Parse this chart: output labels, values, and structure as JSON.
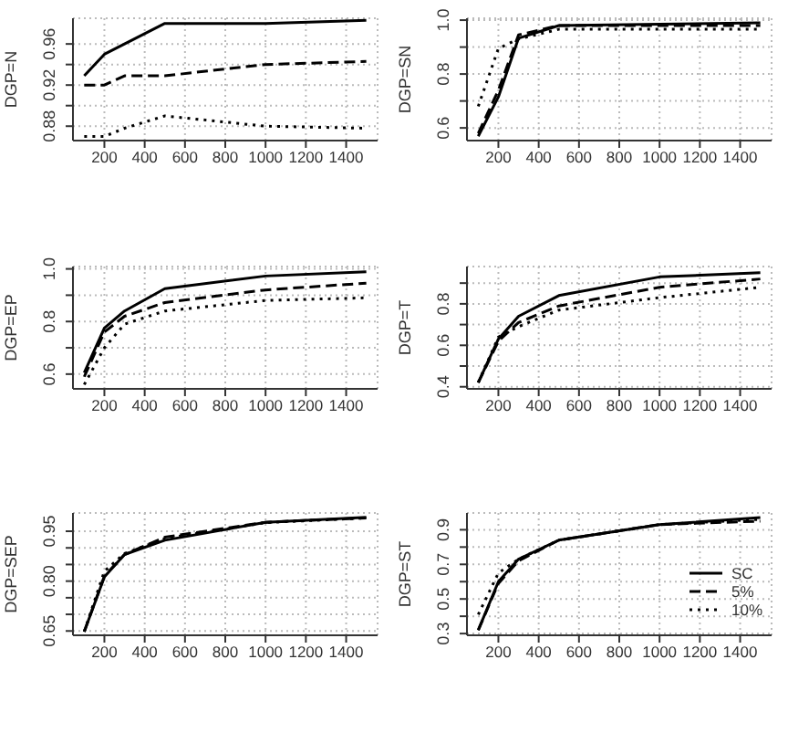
{
  "chart_data": [
    {
      "type": "line",
      "ylabel": "DGP=N",
      "x": [
        100,
        200,
        300,
        500,
        1000,
        1500
      ],
      "xlim": [
        44,
        1556
      ],
      "xticks": [
        200,
        400,
        600,
        800,
        1000,
        1200,
        1400
      ],
      "ylim": [
        0.866,
        0.985
      ],
      "yticks": [
        0.88,
        {
          "value": 0.9,
          "label": null
        },
        0.92,
        {
          "value": 0.94,
          "label": null
        },
        0.96
      ],
      "grid": true,
      "series": [
        {
          "color": "#000000",
          "line_style": "solid",
          "values": [
            0.929,
            0.95,
            0.96,
            0.98,
            0.98,
            0.983
          ]
        },
        {
          "color": "#000000",
          "line_style": "dashed",
          "values": [
            0.92,
            0.92,
            0.929,
            0.929,
            0.94,
            0.943
          ]
        },
        {
          "color": "#000000",
          "line_style": "dotted",
          "values": [
            0.87,
            0.87,
            0.878,
            0.89,
            0.88,
            0.878
          ]
        }
      ]
    },
    {
      "type": "line",
      "ylabel": "DGP=SN",
      "x": [
        100,
        200,
        300,
        500,
        1000,
        1500
      ],
      "xlim": [
        44,
        1556
      ],
      "xticks": [
        200,
        400,
        600,
        800,
        1000,
        1200,
        1400
      ],
      "ylim": [
        0.553,
        1.007
      ],
      "yticks": [
        0.6,
        {
          "value": 0.7,
          "label": null
        },
        0.8,
        {
          "value": 0.9,
          "label": null
        },
        {
          "value": 1,
          "label": "1.0"
        }
      ],
      "grid": true,
      "series": [
        {
          "color": "#000000",
          "line_style": "solid",
          "values": [
            0.569,
            0.715,
            0.933,
            0.98,
            0.985,
            0.99
          ]
        },
        {
          "color": "#000000",
          "line_style": "dashed",
          "values": [
            0.58,
            0.74,
            0.945,
            0.98,
            0.98,
            0.98
          ]
        },
        {
          "color": "#000000",
          "line_style": "dotted",
          "values": [
            0.68,
            0.895,
            0.93,
            0.966,
            0.966,
            0.966
          ]
        }
      ]
    },
    {
      "type": "line",
      "ylabel": "DGP=EP",
      "x": [
        100,
        200,
        300,
        500,
        1000,
        1500
      ],
      "xlim": [
        44,
        1556
      ],
      "xticks": [
        200,
        400,
        600,
        800,
        1000,
        1200,
        1400
      ],
      "ylim": [
        0.544,
        1.009
      ],
      "yticks": [
        0.6,
        {
          "value": 0.7,
          "label": null
        },
        0.8,
        {
          "value": 0.9,
          "label": null
        },
        {
          "value": 1,
          "label": "1.0"
        }
      ],
      "grid": true,
      "series": [
        {
          "color": "#000000",
          "line_style": "solid",
          "values": [
            0.605,
            0.775,
            0.84,
            0.925,
            0.973,
            0.989
          ]
        },
        {
          "color": "#000000",
          "line_style": "dashed",
          "values": [
            0.59,
            0.76,
            0.82,
            0.872,
            0.92,
            0.946
          ]
        },
        {
          "color": "#000000",
          "line_style": "dotted",
          "values": [
            0.56,
            0.7,
            0.79,
            0.84,
            0.88,
            0.89
          ]
        }
      ]
    },
    {
      "type": "line",
      "ylabel": "DGP=T",
      "x": [
        100,
        200,
        300,
        500,
        1000,
        1500
      ],
      "xlim": [
        44,
        1556
      ],
      "xticks": [
        200,
        400,
        600,
        800,
        1000,
        1200,
        1400
      ],
      "ylim": [
        0.39,
        0.98
      ],
      "yticks": [
        0.4,
        {
          "value": 0.5,
          "label": null
        },
        0.6,
        {
          "value": 0.7,
          "label": null
        },
        0.8,
        {
          "value": 0.9,
          "label": null
        }
      ],
      "grid": true,
      "series": [
        {
          "color": "#000000",
          "line_style": "solid",
          "values": [
            0.42,
            0.63,
            0.74,
            0.84,
            0.93,
            0.95
          ]
        },
        {
          "color": "#000000",
          "line_style": "dashed",
          "values": [
            0.42,
            0.62,
            0.71,
            0.79,
            0.88,
            0.92
          ]
        },
        {
          "color": "#000000",
          "line_style": "dotted",
          "values": [
            0.42,
            0.64,
            0.69,
            0.77,
            0.83,
            0.88
          ]
        }
      ]
    },
    {
      "type": "line",
      "ylabel": "DGP=SEP",
      "x": [
        100,
        200,
        300,
        500,
        1000,
        1500
      ],
      "xlim": [
        44,
        1556
      ],
      "xticks": [
        200,
        400,
        600,
        800,
        1000,
        1200,
        1400
      ],
      "ylim": [
        0.637,
        1.005
      ],
      "yticks": [
        0.65,
        {
          "value": 0.7,
          "label": null
        },
        {
          "value": 0.75,
          "label": null
        },
        {
          "value": 0.8,
          "label": "0.80"
        },
        {
          "value": 0.85,
          "label": null
        },
        {
          "value": 0.9,
          "label": null
        },
        0.95
      ],
      "grid": true,
      "series": [
        {
          "color": "#000000",
          "line_style": "solid",
          "values": [
            0.648,
            0.813,
            0.88,
            0.923,
            0.977,
            0.992
          ]
        },
        {
          "color": "#000000",
          "line_style": "dashed",
          "values": [
            0.648,
            0.815,
            0.88,
            0.932,
            0.977,
            0.99
          ]
        },
        {
          "color": "#000000",
          "line_style": "dotted",
          "values": [
            0.648,
            0.83,
            0.883,
            0.928,
            0.976,
            0.99
          ]
        }
      ]
    },
    {
      "type": "line",
      "ylabel": "DGP=ST",
      "x": [
        100,
        200,
        300,
        500,
        1000,
        1500
      ],
      "xlim": [
        44,
        1556
      ],
      "xticks": [
        200,
        400,
        600,
        800,
        1000,
        1200,
        1400
      ],
      "ylim": [
        0.29,
        0.997
      ],
      "yticks": [
        0.3,
        {
          "value": 0.4,
          "label": null
        },
        0.5,
        {
          "value": 0.6,
          "label": null
        },
        0.7,
        {
          "value": 0.8,
          "label": null
        },
        0.9
      ],
      "grid": true,
      "legend": "right",
      "series": [
        {
          "name": "SC",
          "color": "#000000",
          "line_style": "solid",
          "values": [
            0.32,
            0.6,
            0.73,
            0.84,
            0.93,
            0.97
          ]
        },
        {
          "name": "5%",
          "color": "#000000",
          "line_style": "dashed",
          "values": [
            0.32,
            0.59,
            0.72,
            0.84,
            0.93,
            0.95
          ]
        },
        {
          "name": "10%",
          "color": "#000000",
          "line_style": "dotted",
          "values": [
            0.41,
            0.65,
            0.73,
            0.84,
            0.93,
            0.96
          ]
        }
      ]
    }
  ]
}
